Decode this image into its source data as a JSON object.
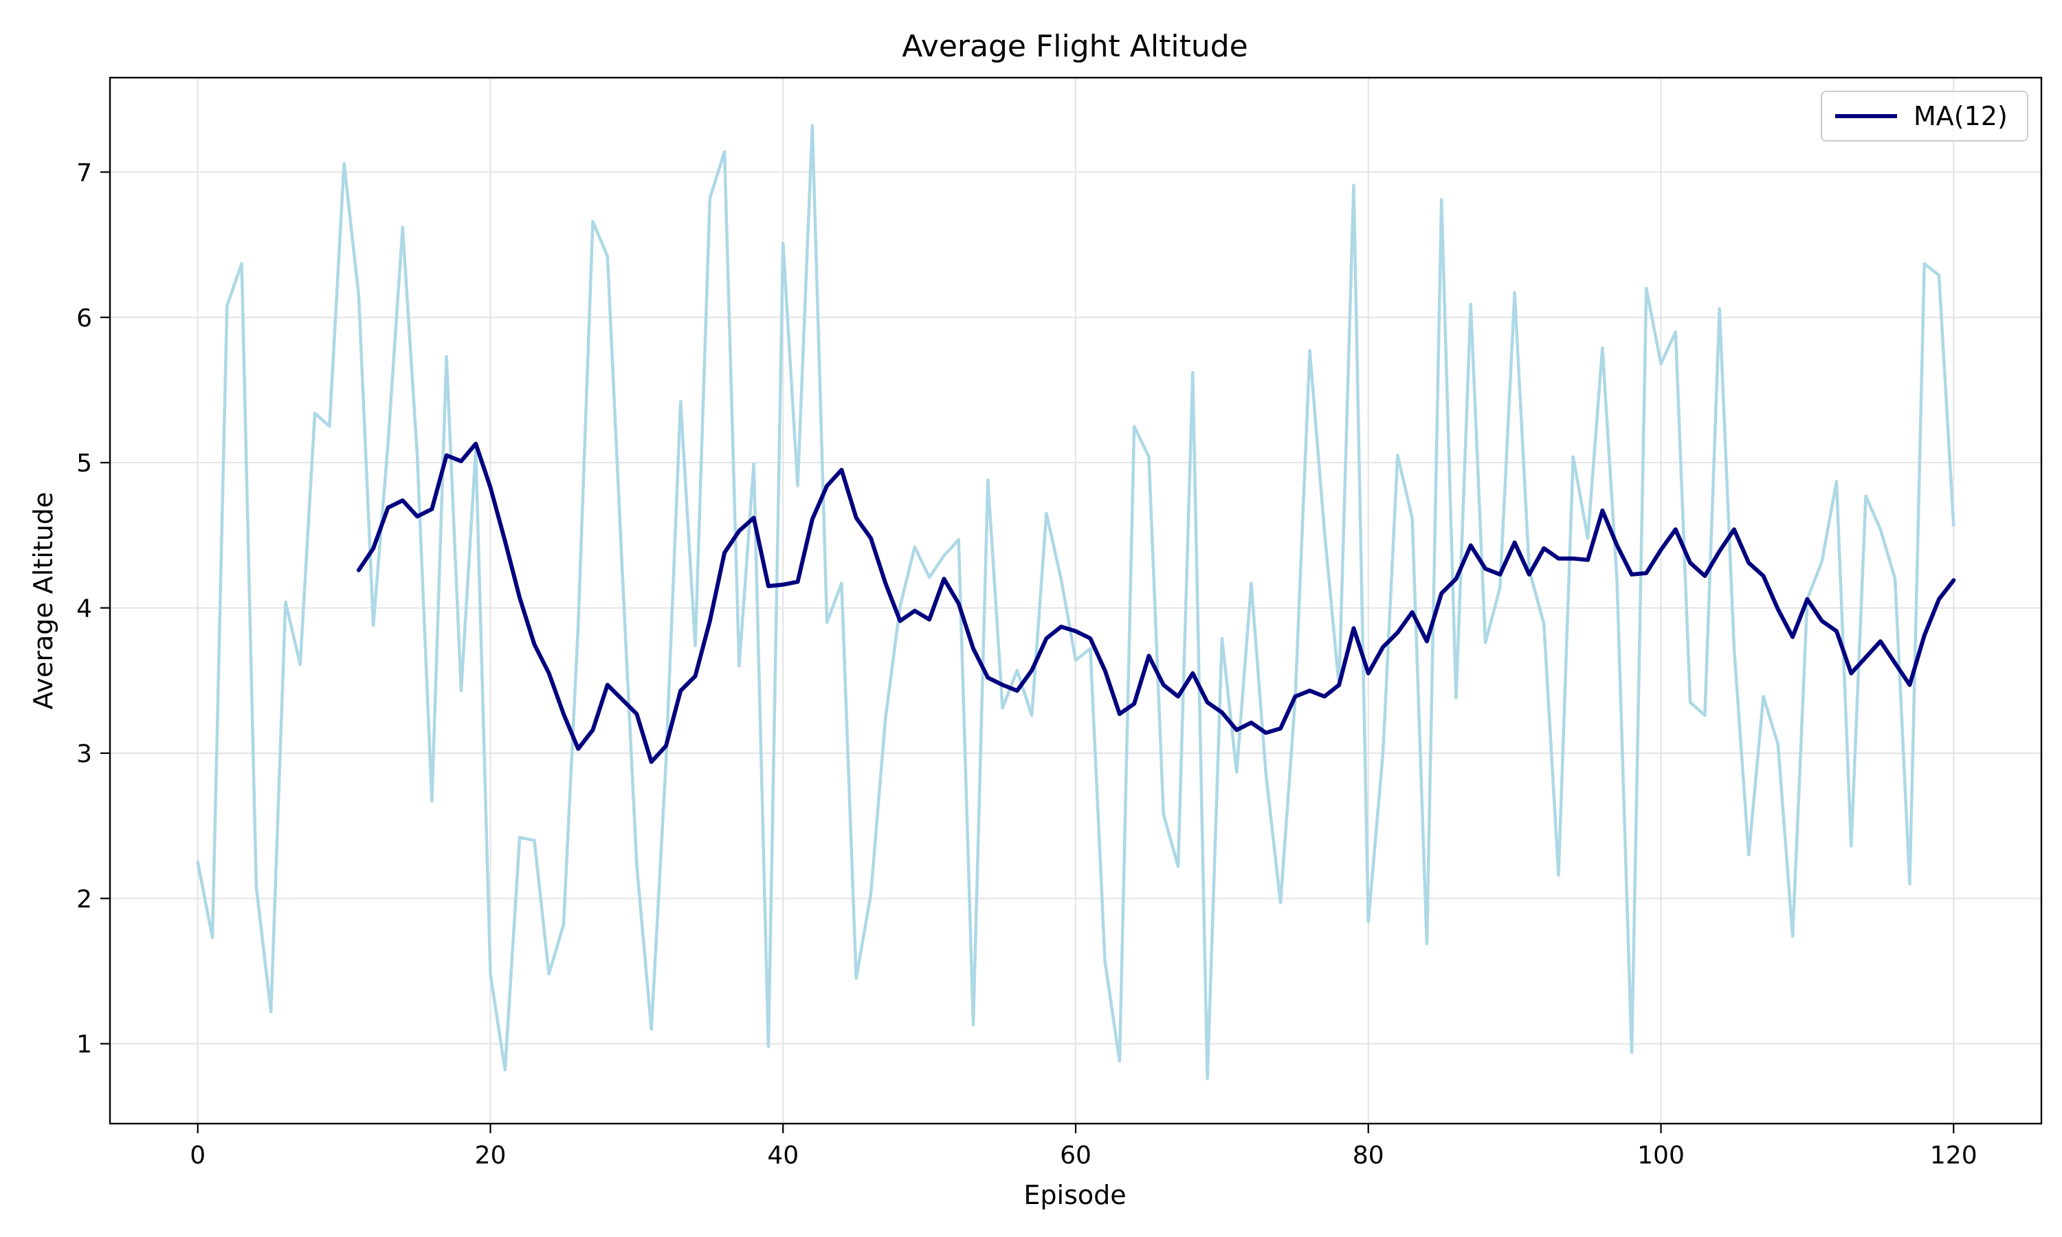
{
  "chart_data": {
    "type": "line",
    "title": "Average Flight Altitude",
    "xlabel": "Episode",
    "ylabel": "Average Altitude",
    "xlim": [
      -6,
      126
    ],
    "ylim": [
      0.45,
      7.65
    ],
    "xticks": [
      0,
      20,
      40,
      60,
      80,
      100,
      120
    ],
    "yticks": [
      1,
      2,
      3,
      4,
      5,
      6,
      7
    ],
    "grid": true,
    "legend_position": "top-right",
    "series": [
      {
        "color": "#add8e6",
        "x_start": 0,
        "values": [
          2.25,
          1.73,
          6.08,
          6.37,
          2.08,
          1.22,
          4.04,
          3.61,
          5.34,
          5.25,
          7.06,
          6.15,
          3.88,
          5.13,
          6.62,
          5.05,
          2.67,
          5.73,
          3.43,
          5.09,
          1.48,
          0.82,
          2.42,
          2.4,
          1.48,
          1.82,
          3.88,
          6.66,
          6.42,
          4.28,
          2.23,
          1.1,
          2.94,
          5.42,
          3.74,
          6.82,
          7.14,
          3.6,
          4.99,
          0.98,
          6.51,
          4.84,
          7.32,
          3.9,
          4.17,
          1.45,
          2.03,
          3.24,
          4.01,
          4.42,
          4.21,
          4.36,
          4.47,
          1.13,
          4.88,
          3.31,
          3.57,
          3.26,
          4.65,
          4.2,
          3.64,
          3.72,
          1.57,
          0.88,
          5.25,
          5.04,
          2.58,
          2.22,
          5.62,
          0.76,
          3.79,
          2.87,
          4.17,
          2.86,
          1.97,
          3.37,
          5.77,
          4.53,
          3.46,
          6.91,
          1.84,
          3.0,
          5.05,
          4.62,
          1.69,
          6.81,
          3.38,
          6.09,
          3.76,
          4.14,
          6.17,
          4.26,
          3.89,
          2.16,
          5.04,
          4.48,
          5.79,
          4.18,
          0.94,
          6.2,
          5.68,
          5.9,
          3.35,
          3.26,
          6.06,
          3.72,
          2.3,
          3.39,
          3.06,
          1.74,
          4.06,
          4.32,
          4.87,
          2.36,
          4.77,
          4.54,
          4.2,
          2.1,
          6.37,
          6.29,
          4.57
        ]
      },
      {
        "name": "MA(12)",
        "color": "#00007f",
        "x_start": 11,
        "values": [
          4.26,
          4.41,
          4.69,
          4.74,
          4.63,
          4.68,
          5.05,
          5.01,
          5.13,
          4.83,
          4.46,
          4.07,
          3.75,
          3.55,
          3.27,
          3.03,
          3.16,
          3.47,
          3.37,
          3.27,
          2.94,
          3.05,
          3.43,
          3.53,
          3.91,
          4.38,
          4.53,
          4.62,
          4.15,
          4.16,
          4.18,
          4.61,
          4.84,
          4.95,
          4.62,
          4.48,
          4.17,
          3.91,
          3.98,
          3.92,
          4.2,
          4.03,
          3.72,
          3.52,
          3.47,
          3.43,
          3.57,
          3.79,
          3.87,
          3.84,
          3.79,
          3.57,
          3.27,
          3.34,
          3.67,
          3.47,
          3.39,
          3.55,
          3.35,
          3.28,
          3.16,
          3.21,
          3.14,
          3.17,
          3.39,
          3.43,
          3.39,
          3.47,
          3.86,
          3.55,
          3.73,
          3.83,
          3.97,
          3.77,
          4.1,
          4.2,
          4.43,
          4.27,
          4.23,
          4.45,
          4.23,
          4.41,
          4.34,
          4.34,
          4.33,
          4.67,
          4.43,
          4.23,
          4.24,
          4.4,
          4.54,
          4.31,
          4.22,
          4.39,
          4.54,
          4.31,
          4.22,
          3.99,
          3.8,
          4.06,
          3.91,
          3.84,
          3.55,
          3.66,
          3.77,
          3.62,
          3.47,
          3.81,
          4.06,
          4.19
        ]
      }
    ]
  }
}
